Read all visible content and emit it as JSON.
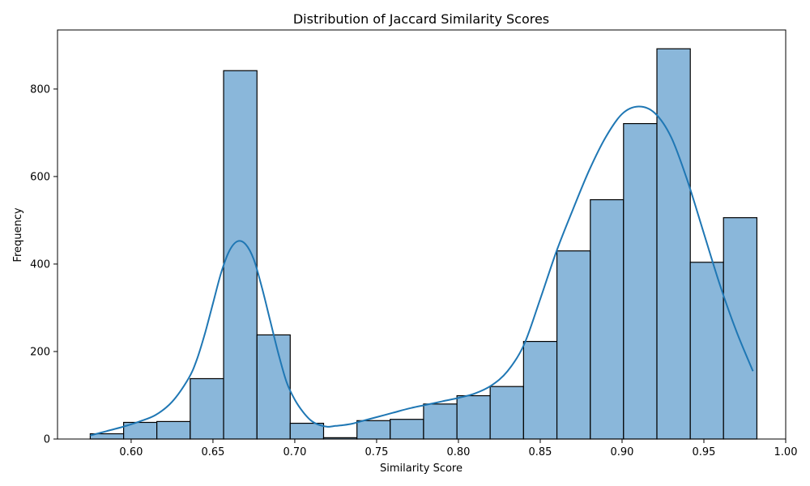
{
  "chart_data": {
    "type": "bar",
    "title": "Distribution of Jaccard Similarity Scores",
    "xlabel": "Similarity Score",
    "ylabel": "Frequency",
    "xlim": [
      0.555,
      1.0
    ],
    "ylim": [
      0,
      935
    ],
    "x_ticks": [
      0.6,
      0.65,
      0.7,
      0.75,
      0.8,
      0.85,
      0.9,
      0.95,
      1.0
    ],
    "x_tick_labels": [
      "0.60",
      "0.65",
      "0.70",
      "0.75",
      "0.80",
      "0.85",
      "0.90",
      "0.95",
      "1.00"
    ],
    "y_ticks": [
      0,
      200,
      400,
      600,
      800
    ],
    "y_tick_labels": [
      "0",
      "200",
      "400",
      "600",
      "800"
    ],
    "grid": false,
    "bins": [
      {
        "x0": 0.575,
        "x1": 0.5954,
        "count": 12
      },
      {
        "x0": 0.5954,
        "x1": 0.6157,
        "count": 38
      },
      {
        "x0": 0.6157,
        "x1": 0.6361,
        "count": 40
      },
      {
        "x0": 0.6361,
        "x1": 0.6565,
        "count": 138
      },
      {
        "x0": 0.6565,
        "x1": 0.6769,
        "count": 842
      },
      {
        "x0": 0.6769,
        "x1": 0.6972,
        "count": 238
      },
      {
        "x0": 0.6972,
        "x1": 0.7176,
        "count": 36
      },
      {
        "x0": 0.7176,
        "x1": 0.738,
        "count": 3
      },
      {
        "x0": 0.738,
        "x1": 0.7583,
        "count": 42
      },
      {
        "x0": 0.7583,
        "x1": 0.7787,
        "count": 45
      },
      {
        "x0": 0.7787,
        "x1": 0.7991,
        "count": 80
      },
      {
        "x0": 0.7991,
        "x1": 0.8194,
        "count": 99
      },
      {
        "x0": 0.8194,
        "x1": 0.8398,
        "count": 120
      },
      {
        "x0": 0.8398,
        "x1": 0.8602,
        "count": 223
      },
      {
        "x0": 0.8602,
        "x1": 0.8806,
        "count": 430
      },
      {
        "x0": 0.8806,
        "x1": 0.9009,
        "count": 547
      },
      {
        "x0": 0.9009,
        "x1": 0.9213,
        "count": 721
      },
      {
        "x0": 0.9213,
        "x1": 0.9417,
        "count": 892
      },
      {
        "x0": 0.9417,
        "x1": 0.962,
        "count": 404
      },
      {
        "x0": 0.962,
        "x1": 0.9824,
        "count": 506
      }
    ],
    "kde": {
      "x": [
        0.575,
        0.585,
        0.595,
        0.605,
        0.615,
        0.625,
        0.635,
        0.64,
        0.645,
        0.65,
        0.655,
        0.66,
        0.665,
        0.67,
        0.675,
        0.68,
        0.685,
        0.69,
        0.695,
        0.7,
        0.705,
        0.71,
        0.715,
        0.72,
        0.725,
        0.73,
        0.735,
        0.74,
        0.75,
        0.76,
        0.77,
        0.78,
        0.79,
        0.8,
        0.81,
        0.82,
        0.83,
        0.84,
        0.85,
        0.86,
        0.87,
        0.88,
        0.89,
        0.9,
        0.91,
        0.92,
        0.93,
        0.94,
        0.95,
        0.96,
        0.97,
        0.98
      ],
      "y": [
        8,
        18,
        28,
        40,
        55,
        85,
        138,
        180,
        240,
        310,
        380,
        430,
        452,
        445,
        410,
        345,
        270,
        195,
        130,
        90,
        62,
        42,
        32,
        28,
        30,
        32,
        35,
        40,
        50,
        60,
        70,
        78,
        86,
        94,
        104,
        122,
        155,
        215,
        320,
        430,
        525,
        615,
        690,
        743,
        760,
        745,
        690,
        590,
        470,
        350,
        245,
        155
      ]
    },
    "bar_fill": "#8ab7da",
    "bar_edge": "#000000",
    "kde_color": "#1f77b4"
  }
}
